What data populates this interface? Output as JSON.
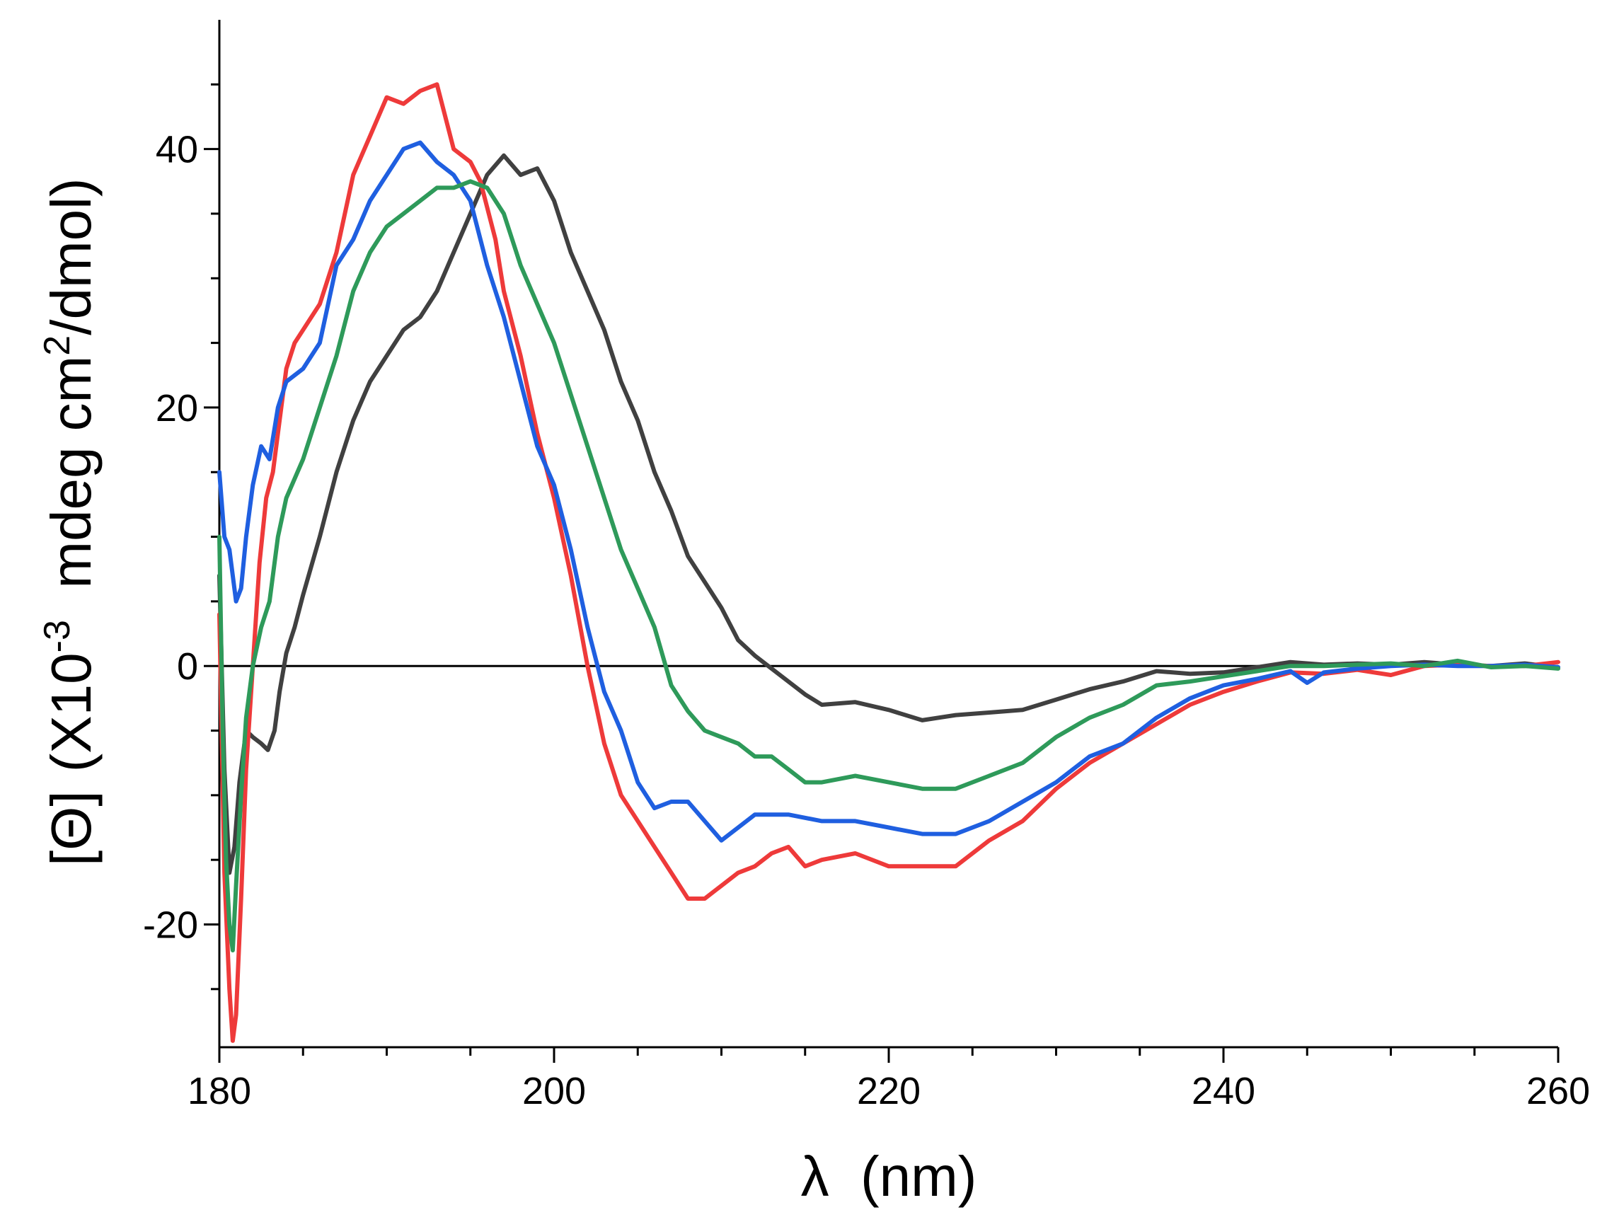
{
  "chart_data": {
    "type": "line",
    "title": "",
    "xlabel": "λ  (nm)",
    "ylabel_parts": {
      "bracket_open": "[",
      "theta": "Θ",
      "bracket_close": "]",
      "scale_open": "(X10",
      "scale_exp": "-3",
      "units_pre": "  mdeg cm",
      "units_exp": "2",
      "units_post": "/dmol)"
    },
    "xlim": [
      180,
      260
    ],
    "ylim": [
      -29.5,
      50
    ],
    "xticks": [
      180,
      200,
      220,
      240,
      260
    ],
    "xtick_labels": [
      "180",
      "200",
      "220",
      "240",
      "260"
    ],
    "yticks": [
      -20,
      0,
      20,
      40
    ],
    "ytick_labels": [
      "-20",
      "0",
      "20",
      "40"
    ],
    "zero_line": true,
    "grid": false,
    "legend": "none",
    "series": [
      {
        "name": "black",
        "color": "#404040",
        "points": [
          [
            180.0,
            7
          ],
          [
            180.3,
            -8
          ],
          [
            180.6,
            -16
          ],
          [
            180.9,
            -14
          ],
          [
            181.2,
            -9
          ],
          [
            181.6,
            -5
          ],
          [
            182.0,
            -5.5
          ],
          [
            182.5,
            -6
          ],
          [
            182.9,
            -6.5
          ],
          [
            183.3,
            -5
          ],
          [
            183.6,
            -2
          ],
          [
            184.0,
            1
          ],
          [
            184.5,
            3
          ],
          [
            185.0,
            5.5
          ],
          [
            186.0,
            10
          ],
          [
            187.0,
            15
          ],
          [
            188.0,
            19
          ],
          [
            189.0,
            22
          ],
          [
            190.0,
            24
          ],
          [
            191.0,
            26
          ],
          [
            192.0,
            27
          ],
          [
            193.0,
            29
          ],
          [
            194.0,
            32
          ],
          [
            195.0,
            35
          ],
          [
            196.0,
            38
          ],
          [
            197.0,
            39.5
          ],
          [
            198.0,
            38
          ],
          [
            199.0,
            38.5
          ],
          [
            200.0,
            36
          ],
          [
            201.0,
            32
          ],
          [
            202.0,
            29
          ],
          [
            203.0,
            26
          ],
          [
            204.0,
            22
          ],
          [
            205.0,
            19
          ],
          [
            206.0,
            15
          ],
          [
            207.0,
            12
          ],
          [
            208.0,
            8.5
          ],
          [
            209.0,
            6.5
          ],
          [
            210.0,
            4.5
          ],
          [
            211.0,
            2
          ],
          [
            212.0,
            0.8
          ],
          [
            213.0,
            -0.2
          ],
          [
            214.0,
            -1.2
          ],
          [
            215.0,
            -2.2
          ],
          [
            216.0,
            -3
          ],
          [
            218.0,
            -2.8
          ],
          [
            220.0,
            -3.4
          ],
          [
            222.0,
            -4.2
          ],
          [
            224.0,
            -3.8
          ],
          [
            226.0,
            -3.6
          ],
          [
            228.0,
            -3.4
          ],
          [
            230.0,
            -2.6
          ],
          [
            232.0,
            -1.8
          ],
          [
            234.0,
            -1.2
          ],
          [
            236.0,
            -0.4
          ],
          [
            238.0,
            -0.6
          ],
          [
            240.0,
            -0.5
          ],
          [
            242.0,
            -0.1
          ],
          [
            244.0,
            0.3
          ],
          [
            246.0,
            0.1
          ],
          [
            248.0,
            0.2
          ],
          [
            250.0,
            0.1
          ],
          [
            252.0,
            0.3
          ],
          [
            254.0,
            0.1
          ],
          [
            256.0,
            0
          ],
          [
            258.0,
            0.2
          ],
          [
            260.0,
            -0.1
          ]
        ]
      },
      {
        "name": "red",
        "color": "#ee3a3a",
        "points": [
          [
            180.0,
            4
          ],
          [
            180.3,
            -16
          ],
          [
            180.6,
            -25
          ],
          [
            180.8,
            -29
          ],
          [
            181.0,
            -27
          ],
          [
            181.3,
            -18
          ],
          [
            181.6,
            -8
          ],
          [
            182.0,
            0
          ],
          [
            182.4,
            8
          ],
          [
            182.8,
            13
          ],
          [
            183.2,
            15
          ],
          [
            183.6,
            19
          ],
          [
            184.0,
            23
          ],
          [
            184.5,
            25
          ],
          [
            185.0,
            26
          ],
          [
            186.0,
            28
          ],
          [
            187.0,
            32
          ],
          [
            188.0,
            38
          ],
          [
            189.0,
            41
          ],
          [
            190.0,
            44
          ],
          [
            191.0,
            43.5
          ],
          [
            192.0,
            44.5
          ],
          [
            193.0,
            45
          ],
          [
            194.0,
            40
          ],
          [
            195.0,
            39
          ],
          [
            195.6,
            37.5
          ],
          [
            196.5,
            33
          ],
          [
            197.0,
            29
          ],
          [
            198.0,
            24
          ],
          [
            199.0,
            18
          ],
          [
            200.0,
            13
          ],
          [
            201.0,
            7
          ],
          [
            202.0,
            0
          ],
          [
            203.0,
            -6
          ],
          [
            204.0,
            -10
          ],
          [
            205.0,
            -12
          ],
          [
            206.0,
            -14
          ],
          [
            207.0,
            -16
          ],
          [
            208.0,
            -18
          ],
          [
            209.0,
            -18
          ],
          [
            210.0,
            -17
          ],
          [
            211.0,
            -16
          ],
          [
            212.0,
            -15.5
          ],
          [
            213.0,
            -14.5
          ],
          [
            214.0,
            -14
          ],
          [
            215.0,
            -15.5
          ],
          [
            216.0,
            -15
          ],
          [
            218.0,
            -14.5
          ],
          [
            220.0,
            -15.5
          ],
          [
            222.0,
            -15.5
          ],
          [
            224.0,
            -15.5
          ],
          [
            226.0,
            -13.5
          ],
          [
            228.0,
            -12
          ],
          [
            230.0,
            -9.5
          ],
          [
            232.0,
            -7.5
          ],
          [
            234.0,
            -6
          ],
          [
            236.0,
            -4.5
          ],
          [
            238.0,
            -3
          ],
          [
            240.0,
            -2
          ],
          [
            242.0,
            -1.2
          ],
          [
            244.0,
            -0.5
          ],
          [
            246.0,
            -0.6
          ],
          [
            248.0,
            -0.3
          ],
          [
            250.0,
            -0.7
          ],
          [
            252.0,
            0
          ],
          [
            254.0,
            0.1
          ],
          [
            256.0,
            0
          ],
          [
            258.0,
            0
          ],
          [
            260.0,
            0.3
          ]
        ]
      },
      {
        "name": "blue",
        "color": "#1f5fe0",
        "points": [
          [
            180.0,
            15
          ],
          [
            180.3,
            10
          ],
          [
            180.6,
            9
          ],
          [
            181.0,
            5
          ],
          [
            181.3,
            6
          ],
          [
            181.6,
            10
          ],
          [
            182.0,
            14
          ],
          [
            182.5,
            17
          ],
          [
            183.0,
            16
          ],
          [
            183.5,
            20
          ],
          [
            184.0,
            22
          ],
          [
            185.0,
            23
          ],
          [
            186.0,
            25
          ],
          [
            187.0,
            31
          ],
          [
            188.0,
            33
          ],
          [
            189.0,
            36
          ],
          [
            190.0,
            38
          ],
          [
            191.0,
            40
          ],
          [
            192.0,
            40.5
          ],
          [
            193.0,
            39
          ],
          [
            194.0,
            38
          ],
          [
            195.0,
            36
          ],
          [
            196.0,
            31
          ],
          [
            197.0,
            27
          ],
          [
            198.0,
            22
          ],
          [
            199.0,
            17
          ],
          [
            200.0,
            14
          ],
          [
            201.0,
            9
          ],
          [
            202.0,
            3
          ],
          [
            203.0,
            -2
          ],
          [
            204.0,
            -5
          ],
          [
            205.0,
            -9
          ],
          [
            206.0,
            -11
          ],
          [
            207.0,
            -10.5
          ],
          [
            208.0,
            -10.5
          ],
          [
            209.0,
            -12
          ],
          [
            210.0,
            -13.5
          ],
          [
            211.0,
            -12.5
          ],
          [
            212.0,
            -11.5
          ],
          [
            214.0,
            -11.5
          ],
          [
            216.0,
            -12
          ],
          [
            218.0,
            -12
          ],
          [
            220.0,
            -12.5
          ],
          [
            222.0,
            -13
          ],
          [
            224.0,
            -13
          ],
          [
            226.0,
            -12
          ],
          [
            228.0,
            -10.5
          ],
          [
            230.0,
            -9
          ],
          [
            232.0,
            -7
          ],
          [
            234.0,
            -6
          ],
          [
            236.0,
            -4
          ],
          [
            238.0,
            -2.5
          ],
          [
            240.0,
            -1.5
          ],
          [
            242.0,
            -1
          ],
          [
            244.0,
            -0.4
          ],
          [
            245.0,
            -1.3
          ],
          [
            246.0,
            -0.5
          ],
          [
            248.0,
            -0.2
          ],
          [
            250.0,
            0
          ],
          [
            252.0,
            0.1
          ],
          [
            254.0,
            0
          ],
          [
            256.0,
            0
          ],
          [
            258.0,
            0.1
          ],
          [
            260.0,
            -0.1
          ]
        ]
      },
      {
        "name": "green",
        "color": "#2e9a5a",
        "points": [
          [
            180.0,
            10
          ],
          [
            180.2,
            -5
          ],
          [
            180.4,
            -15
          ],
          [
            180.6,
            -20
          ],
          [
            180.8,
            -22
          ],
          [
            181.0,
            -17
          ],
          [
            181.3,
            -10
          ],
          [
            181.6,
            -4
          ],
          [
            182.0,
            0
          ],
          [
            182.5,
            3
          ],
          [
            183.0,
            5
          ],
          [
            183.5,
            10
          ],
          [
            184.0,
            13
          ],
          [
            185.0,
            16
          ],
          [
            186.0,
            20
          ],
          [
            187.0,
            24
          ],
          [
            188.0,
            29
          ],
          [
            189.0,
            32
          ],
          [
            190.0,
            34
          ],
          [
            191.0,
            35
          ],
          [
            192.0,
            36
          ],
          [
            193.0,
            37
          ],
          [
            194.0,
            37
          ],
          [
            195.0,
            37.5
          ],
          [
            196.0,
            37
          ],
          [
            197.0,
            35
          ],
          [
            198.0,
            31
          ],
          [
            199.0,
            28
          ],
          [
            200.0,
            25
          ],
          [
            201.0,
            21
          ],
          [
            202.0,
            17
          ],
          [
            203.0,
            13
          ],
          [
            204.0,
            9
          ],
          [
            205.0,
            6
          ],
          [
            206.0,
            3
          ],
          [
            207.0,
            -1.5
          ],
          [
            208.0,
            -3.5
          ],
          [
            209.0,
            -5
          ],
          [
            210.0,
            -5.5
          ],
          [
            211.0,
            -6
          ],
          [
            212.0,
            -7
          ],
          [
            213.0,
            -7
          ],
          [
            214.0,
            -8
          ],
          [
            215.0,
            -9
          ],
          [
            216.0,
            -9
          ],
          [
            218.0,
            -8.5
          ],
          [
            220.0,
            -9
          ],
          [
            222.0,
            -9.5
          ],
          [
            224.0,
            -9.5
          ],
          [
            226.0,
            -8.5
          ],
          [
            228.0,
            -7.5
          ],
          [
            230.0,
            -5.5
          ],
          [
            232.0,
            -4
          ],
          [
            234.0,
            -3
          ],
          [
            236.0,
            -1.5
          ],
          [
            238.0,
            -1.2
          ],
          [
            240.0,
            -0.8
          ],
          [
            242.0,
            -0.4
          ],
          [
            244.0,
            0
          ],
          [
            246.0,
            0
          ],
          [
            248.0,
            0.1
          ],
          [
            250.0,
            0.2
          ],
          [
            252.0,
            0
          ],
          [
            254.0,
            0.4
          ],
          [
            256.0,
            -0.1
          ],
          [
            258.0,
            0
          ],
          [
            260.0,
            -0.2
          ]
        ]
      }
    ]
  }
}
